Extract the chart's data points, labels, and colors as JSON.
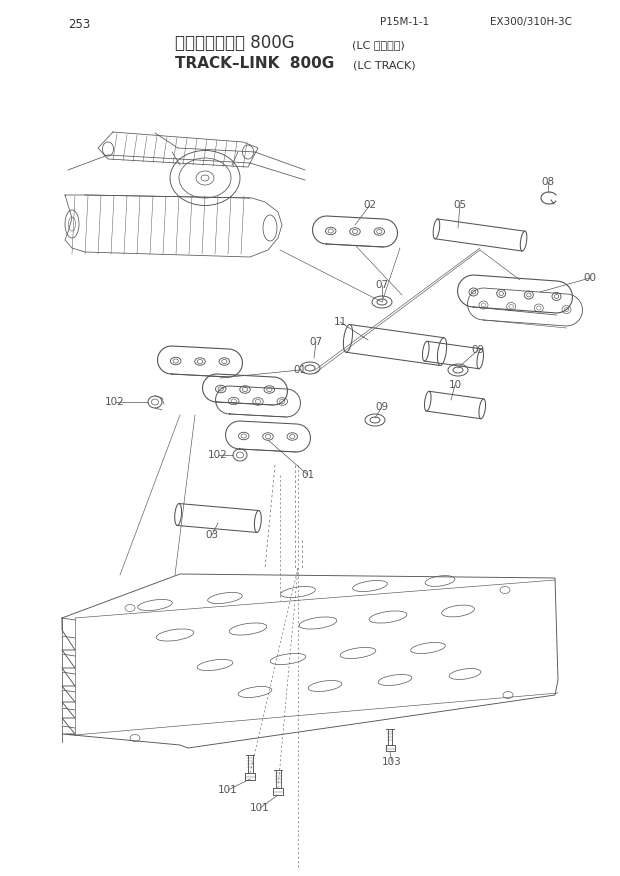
{
  "page_number": "253",
  "doc_ref": "P15M-1-1",
  "model": "EX300/310H-3C",
  "title_jp": "トラックリンク 800G",
  "title_jp_sub": "(LC トラック)",
  "title_en": "TRACK-LINK  800G",
  "title_en_sub": "(LC TRACK)",
  "bg_color": "#ffffff",
  "line_color": "#555555",
  "text_color": "#333333",
  "figsize": [
    6.2,
    8.76
  ],
  "dpi": 100
}
